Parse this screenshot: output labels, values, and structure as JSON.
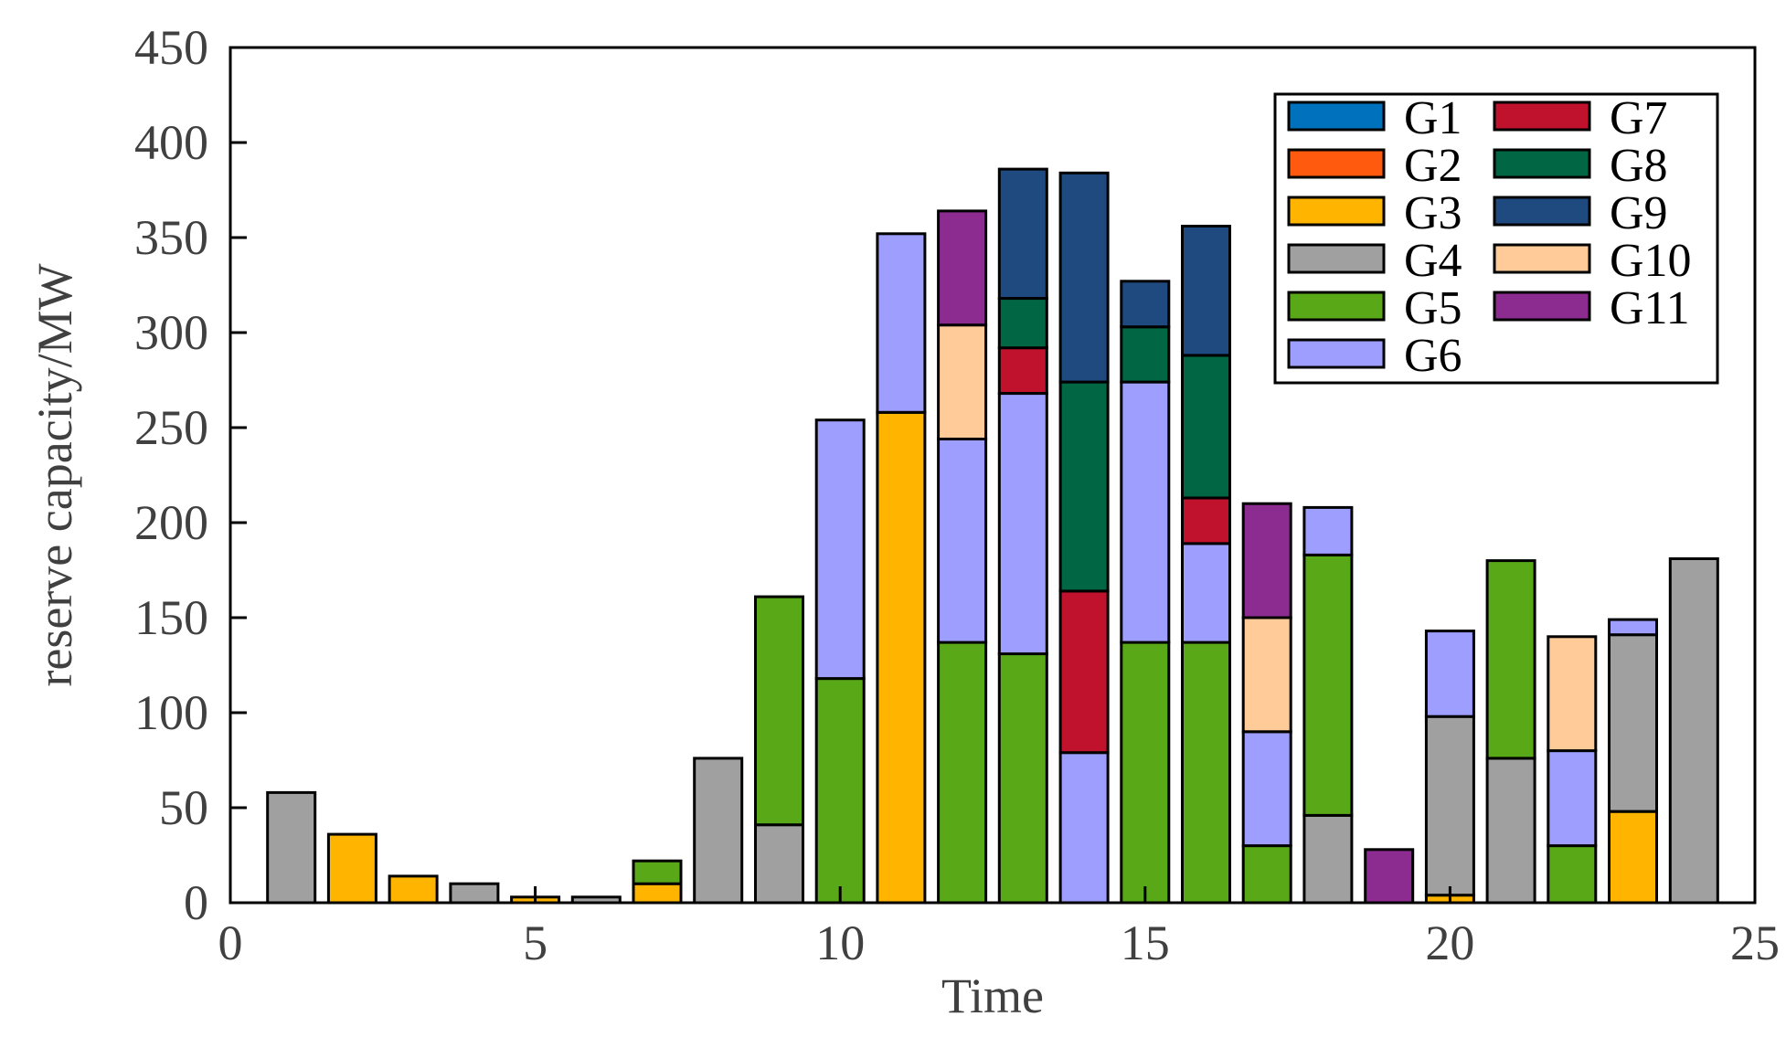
{
  "chart_data": {
    "type": "bar",
    "stacked": true,
    "title": "",
    "xlabel": "Time",
    "ylabel": "reserve capacity/MW",
    "xlim": [
      0,
      25
    ],
    "ylim": [
      0,
      450
    ],
    "xticks": [
      0,
      5,
      10,
      15,
      20,
      25
    ],
    "yticks": [
      0,
      50,
      100,
      150,
      200,
      250,
      300,
      350,
      400,
      450
    ],
    "grid": false,
    "legend_position": "top-right",
    "x": [
      1,
      2,
      3,
      4,
      5,
      6,
      7,
      8,
      9,
      10,
      11,
      12,
      13,
      14,
      15,
      16,
      17,
      18,
      19,
      20,
      21,
      22,
      23,
      24
    ],
    "series": [
      {
        "name": "G1",
        "color": "#0072BD",
        "values": [
          0,
          0,
          0,
          0,
          0,
          0,
          0,
          0,
          0,
          0,
          0,
          0,
          0,
          0,
          0,
          0,
          0,
          0,
          0,
          0,
          0,
          0,
          0,
          0
        ]
      },
      {
        "name": "G2",
        "color": "#FF5A0E",
        "values": [
          0,
          0,
          0,
          0,
          0,
          0,
          0,
          0,
          0,
          0,
          0,
          0,
          0,
          0,
          0,
          0,
          0,
          0,
          0,
          0,
          0,
          0,
          0,
          0
        ]
      },
      {
        "name": "G3",
        "color": "#FFB400",
        "values": [
          0,
          36,
          14,
          0,
          3,
          0,
          10,
          0,
          0,
          0,
          258,
          0,
          0,
          0,
          0,
          0,
          0,
          0,
          0,
          4,
          0,
          0,
          48,
          0
        ]
      },
      {
        "name": "G4",
        "color": "#A0A0A0",
        "values": [
          58,
          0,
          0,
          10,
          0,
          3,
          0,
          76,
          41,
          0,
          0,
          0,
          0,
          0,
          0,
          0,
          0,
          46,
          0,
          94,
          76,
          0,
          93,
          181
        ]
      },
      {
        "name": "G5",
        "color": "#58A818",
        "values": [
          0,
          0,
          0,
          0,
          0,
          0,
          12,
          0,
          120,
          118,
          0,
          137,
          131,
          0,
          137,
          137,
          30,
          137,
          0,
          0,
          104,
          30,
          0,
          0
        ]
      },
      {
        "name": "G6",
        "color": "#9E9EFF",
        "values": [
          0,
          0,
          0,
          0,
          0,
          0,
          0,
          0,
          0,
          136,
          94,
          107,
          137,
          79,
          137,
          52,
          60,
          25,
          0,
          45,
          0,
          50,
          8,
          0
        ]
      },
      {
        "name": "G7",
        "color": "#C0122C",
        "values": [
          0,
          0,
          0,
          0,
          0,
          0,
          0,
          0,
          0,
          0,
          0,
          0,
          24,
          85,
          0,
          24,
          0,
          0,
          0,
          0,
          0,
          0,
          0,
          0
        ]
      },
      {
        "name": "G8",
        "color": "#006644",
        "values": [
          0,
          0,
          0,
          0,
          0,
          0,
          0,
          0,
          0,
          0,
          0,
          0,
          26,
          110,
          29,
          75,
          0,
          0,
          0,
          0,
          0,
          0,
          0,
          0
        ]
      },
      {
        "name": "G9",
        "color": "#1F4A80",
        "values": [
          0,
          0,
          0,
          0,
          0,
          0,
          0,
          0,
          0,
          0,
          0,
          0,
          68,
          110,
          24,
          68,
          0,
          0,
          0,
          0,
          0,
          0,
          0,
          0
        ]
      },
      {
        "name": "G10",
        "color": "#FFCC99",
        "values": [
          0,
          0,
          0,
          0,
          0,
          0,
          0,
          0,
          0,
          0,
          0,
          60,
          0,
          0,
          0,
          0,
          60,
          0,
          0,
          0,
          0,
          60,
          0,
          0
        ]
      },
      {
        "name": "G11",
        "color": "#8C2B90",
        "values": [
          0,
          0,
          0,
          0,
          0,
          0,
          0,
          0,
          0,
          0,
          0,
          60,
          0,
          0,
          0,
          0,
          60,
          0,
          28,
          0,
          0,
          0,
          0,
          0
        ]
      }
    ]
  }
}
